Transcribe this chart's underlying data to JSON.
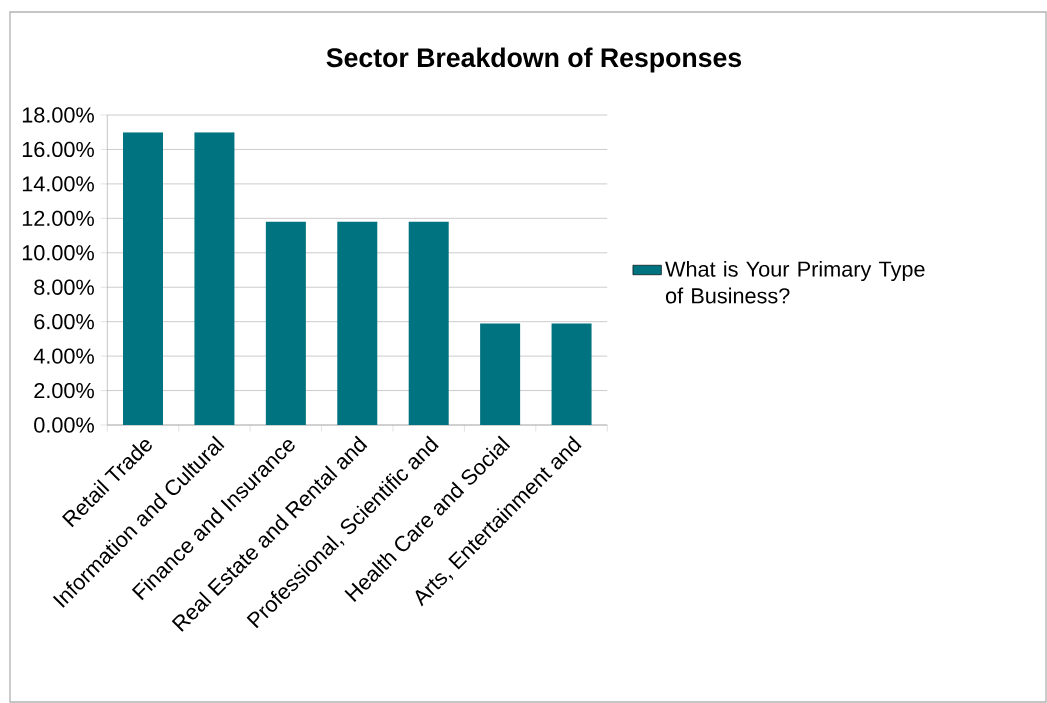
{
  "chart_data": {
    "type": "bar",
    "title": "Sector Breakdown of Responses",
    "categories": [
      "Retail Trade",
      "Information and Cultural",
      "Finance and Insurance",
      "Real Estate and Rental and",
      "Professional, Scientific and",
      "Health Care and Social",
      "Arts, Entertainment and"
    ],
    "series": [
      {
        "name": "What is Your Primary Type of Business?",
        "color": "#007380",
        "values": [
          17.0,
          17.0,
          11.8,
          11.8,
          11.8,
          5.9,
          5.9
        ]
      }
    ],
    "ylim": [
      0,
      18
    ],
    "yticks": [
      {
        "value": 0,
        "label": "0.00%"
      },
      {
        "value": 2,
        "label": "2.00%"
      },
      {
        "value": 4,
        "label": "4.00%"
      },
      {
        "value": 6,
        "label": "6.00%"
      },
      {
        "value": 8,
        "label": "8.00%"
      },
      {
        "value": 10,
        "label": "10.00%"
      },
      {
        "value": 12,
        "label": "12.00%"
      },
      {
        "value": 14,
        "label": "14.00%"
      },
      {
        "value": 16,
        "label": "16.00%"
      },
      {
        "value": 18,
        "label": "18.00%"
      }
    ],
    "grid": "y",
    "legend": "right"
  }
}
